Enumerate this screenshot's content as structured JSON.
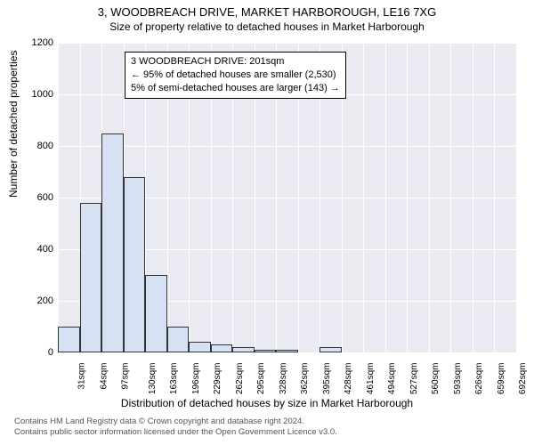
{
  "title": "3, WOODBREACH DRIVE, MARKET HARBOROUGH, LE16 7XG",
  "subtitle": "Size of property relative to detached houses in Market Harborough",
  "ylabel": "Number of detached properties",
  "xlabel": "Distribution of detached houses by size in Market Harborough",
  "callout": {
    "line1": "3 WOODBREACH DRIVE: 201sqm",
    "line2": "← 95% of detached houses are smaller (2,530)",
    "line3": "5% of semi-detached houses are larger (143) →"
  },
  "footer": {
    "line1": "Contains HM Land Registry data © Crown copyright and database right 2024.",
    "line2": "Contains public sector information licensed under the Open Government Licence v3.0."
  },
  "chart": {
    "type": "histogram",
    "background_color": "#eaeaf2",
    "grid_color": "#ffffff",
    "bar_fill": "#d6e2f3",
    "bar_border": "#333333",
    "ylim": [
      0,
      1200
    ],
    "ytick_step": 200,
    "yticks": [
      0,
      200,
      400,
      600,
      800,
      1000,
      1200
    ],
    "xticks": [
      "31sqm",
      "64sqm",
      "97sqm",
      "130sqm",
      "163sqm",
      "196sqm",
      "229sqm",
      "262sqm",
      "295sqm",
      "328sqm",
      "362sqm",
      "395sqm",
      "428sqm",
      "461sqm",
      "494sqm",
      "527sqm",
      "560sqm",
      "593sqm",
      "626sqm",
      "659sqm",
      "692sqm"
    ],
    "bins": [
      {
        "x": 31,
        "count": 100
      },
      {
        "x": 64,
        "count": 580
      },
      {
        "x": 97,
        "count": 850
      },
      {
        "x": 130,
        "count": 680
      },
      {
        "x": 163,
        "count": 300
      },
      {
        "x": 196,
        "count": 100
      },
      {
        "x": 229,
        "count": 40
      },
      {
        "x": 262,
        "count": 30
      },
      {
        "x": 295,
        "count": 20
      },
      {
        "x": 328,
        "count": 12
      },
      {
        "x": 362,
        "count": 12
      },
      {
        "x": 395,
        "count": 0
      },
      {
        "x": 428,
        "count": 20
      },
      {
        "x": 461,
        "count": 0
      },
      {
        "x": 494,
        "count": 0
      },
      {
        "x": 527,
        "count": 0
      },
      {
        "x": 560,
        "count": 0
      },
      {
        "x": 593,
        "count": 0
      },
      {
        "x": 626,
        "count": 0
      },
      {
        "x": 659,
        "count": 0
      }
    ],
    "title_fontsize": 13,
    "label_fontsize": 12,
    "tick_fontsize": 11
  }
}
